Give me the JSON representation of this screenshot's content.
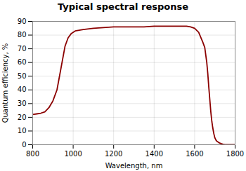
{
  "chart_data": {
    "type": "line",
    "title": "Typical spectral response",
    "xlabel": "Wavelength, nm",
    "ylabel": "Quantum efficiency, %",
    "x": [
      800,
      820,
      840,
      860,
      880,
      900,
      920,
      940,
      960,
      975,
      990,
      1010,
      1050,
      1100,
      1150,
      1200,
      1250,
      1300,
      1350,
      1400,
      1450,
      1500,
      1540,
      1560,
      1580,
      1600,
      1620,
      1640,
      1650,
      1660,
      1665,
      1670,
      1675,
      1680,
      1685,
      1690,
      1695,
      1700,
      1705,
      1710,
      1720,
      1730,
      1740,
      1750,
      1760,
      1770,
      1780,
      1800
    ],
    "values": [
      22,
      22.5,
      23,
      24,
      27,
      32,
      40,
      56,
      72,
      78,
      81,
      83,
      84,
      85,
      85.5,
      86,
      86,
      86,
      86,
      86.5,
      86.5,
      86.5,
      86.5,
      86.5,
      86,
      85,
      82,
      75,
      71,
      60,
      52,
      42,
      33,
      24,
      17,
      12,
      8,
      5,
      3.5,
      2.5,
      1.5,
      0.8,
      0.3,
      0.1,
      0,
      0,
      0,
      0
    ],
    "color": "#8B0000",
    "xlim": [
      800,
      1800
    ],
    "ylim": [
      0,
      90
    ],
    "xticks": [
      800,
      1000,
      1200,
      1400,
      1600,
      1800
    ],
    "yticks": [
      0,
      10,
      20,
      30,
      40,
      50,
      60,
      70,
      80,
      90
    ],
    "grid": true
  }
}
